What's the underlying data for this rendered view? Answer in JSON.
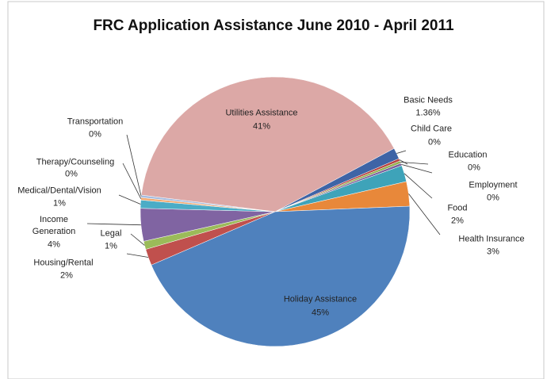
{
  "chart_data": {
    "type": "pie",
    "title": "FRC Application Assistance June 2010 - April 2011",
    "categories": [
      "Basic Needs",
      "Child Care",
      "Education",
      "Employment",
      "Food",
      "Health Insurance",
      "Holiday Assistance",
      "Housing/Rental",
      "Legal",
      "Income Generation",
      "Medical/Dental/Vision",
      "Therapy/Counseling",
      "Transportation",
      "Utilities Assistance"
    ],
    "values": [
      1.36,
      0.3,
      0.3,
      0.3,
      2,
      3,
      45,
      2,
      1,
      4,
      1,
      0.3,
      0.3,
      41
    ],
    "value_labels": [
      "1.36%",
      "0%",
      "0%",
      "0%",
      "2%",
      "3%",
      "45%",
      "2%",
      "1%",
      "4%",
      "1%",
      "0%",
      "0%",
      "41%"
    ],
    "colors": [
      "#3e64a6",
      "#b8423f",
      "#93b04f",
      "#7a5f9c",
      "#3ea3b9",
      "#e8883a",
      "#4f81bd",
      "#c0504d",
      "#9bbb59",
      "#8064a2",
      "#4bacc6",
      "#f2a970",
      "#a7bde0",
      "#dca8a6"
    ]
  }
}
